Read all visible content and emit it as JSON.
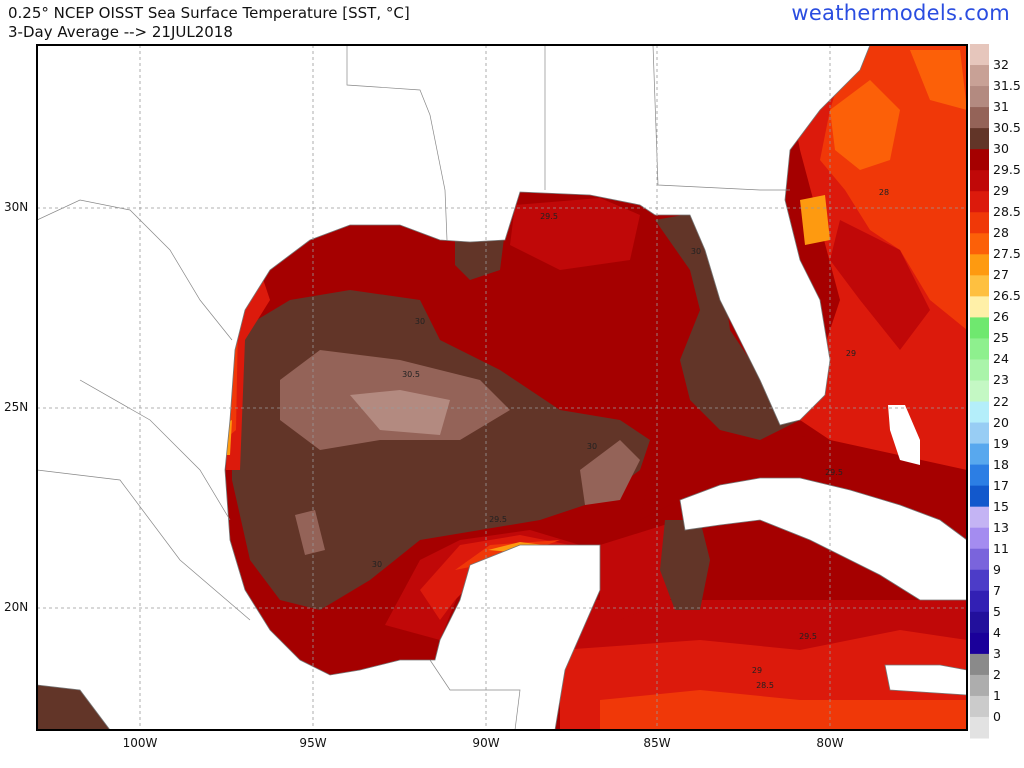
{
  "header": {
    "title": "0.25° NCEP OISST Sea Surface Temperature [SST, °C]",
    "subtitle": "3-Day Average --> 21JUL2018",
    "brand": "weathermodels.com"
  },
  "axes": {
    "lat_labels": [
      "30N",
      "25N",
      "20N"
    ],
    "lon_labels": [
      "100W",
      "95W",
      "90W",
      "85W",
      "80W"
    ]
  },
  "colorbar": {
    "labels": [
      "32",
      "31.5",
      "31",
      "30.5",
      "30",
      "29.5",
      "29",
      "28.5",
      "28",
      "27.5",
      "27",
      "26.5",
      "26",
      "25",
      "24",
      "23",
      "22",
      "20",
      "19",
      "18",
      "17",
      "15",
      "13",
      "11",
      "9",
      "7",
      "5",
      "4",
      "3",
      "2",
      "1",
      "0"
    ],
    "colors": [
      "#e6c6bc",
      "#c8a196",
      "#b38a80",
      "#946358",
      "#623528",
      "#a50000",
      "#c00808",
      "#dc1a0c",
      "#f03808",
      "#fc6008",
      "#fe9a10",
      "#fec040",
      "#fff0a8",
      "#6fe86f",
      "#8ef08e",
      "#aaf4aa",
      "#c4f8c4",
      "#b4eefa",
      "#98cdf4",
      "#58a8ee",
      "#2c7ee4",
      "#1258cc",
      "#c4b4f4",
      "#a48cf0",
      "#7a64dc",
      "#4c3cc8",
      "#3220b4",
      "#22109c",
      "#1a009a",
      "#8a8a8a",
      "#adadad",
      "#cbcbcb",
      "#e2e2e2"
    ]
  },
  "contour_labels": [
    "29.5",
    "30",
    "30",
    "30.5",
    "30",
    "29.5",
    "29.5",
    "30",
    "29",
    "28",
    "29.5",
    "29",
    "28.5"
  ]
}
